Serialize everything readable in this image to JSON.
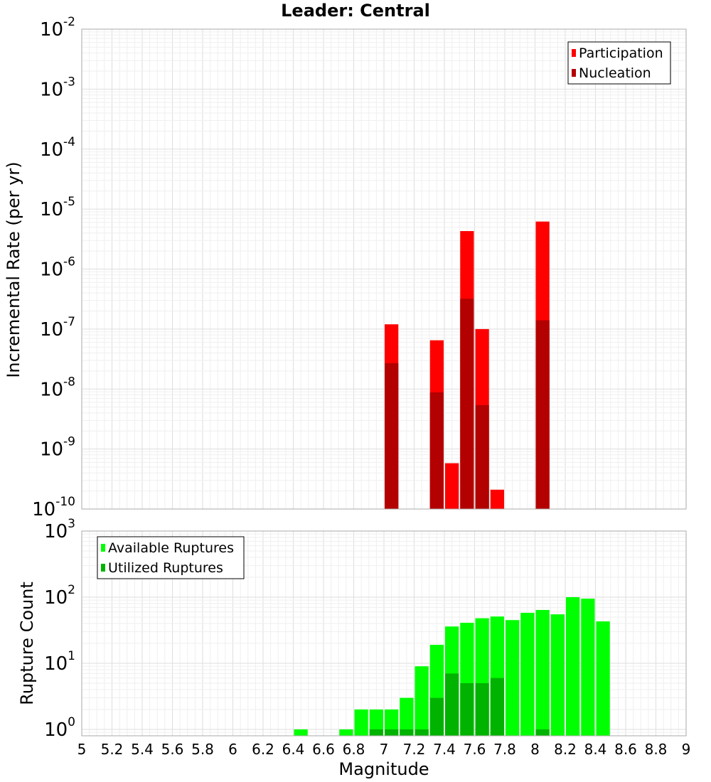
{
  "title": "Leader: Central",
  "chart_data": [
    {
      "type": "bar",
      "ylabel": "Incremental Rate (per yr)",
      "xlabel": "",
      "yscale": "log",
      "ylim": [
        1e-10,
        0.01
      ],
      "xlim": [
        5,
        9
      ],
      "grid": true,
      "legend_position": "top-right",
      "bin_width": 0.1,
      "series": [
        {
          "name": "Participation",
          "color": "#ff0000",
          "x": [
            7.05,
            7.35,
            7.45,
            7.55,
            7.65,
            7.75,
            8.05
          ],
          "values": [
            1.2e-07,
            6.5e-08,
            5.8e-10,
            4.3e-06,
            1e-07,
            2.1e-10,
            6.2e-06
          ]
        },
        {
          "name": "Nucleation",
          "color": "#b30000",
          "x": [
            7.05,
            7.35,
            7.55,
            7.65,
            8.05
          ],
          "values": [
            2.7e-08,
            8.8e-09,
            3.2e-07,
            5.4e-09,
            1.4e-07
          ]
        }
      ]
    },
    {
      "type": "bar",
      "ylabel": "Rupture Count",
      "xlabel": "Magnitude",
      "yscale": "log",
      "ylim": [
        0.8,
        1000
      ],
      "xlim": [
        5,
        9
      ],
      "grid": true,
      "legend_position": "top-left",
      "bin_width": 0.1,
      "xticks": [
        "5",
        "5.2",
        "5.4",
        "5.6",
        "5.8",
        "6",
        "6.2",
        "6.4",
        "6.6",
        "6.8",
        "7",
        "7.2",
        "7.4",
        "7.6",
        "7.8",
        "8",
        "8.2",
        "8.4",
        "8.6",
        "8.8",
        "9"
      ],
      "series": [
        {
          "name": "Available Ruptures",
          "color": "#00ff00",
          "x": [
            6.45,
            6.75,
            6.85,
            6.95,
            7.05,
            7.15,
            7.25,
            7.35,
            7.45,
            7.55,
            7.65,
            7.75,
            7.85,
            7.95,
            8.05,
            8.15,
            8.25,
            8.35,
            8.45
          ],
          "values": [
            1,
            1,
            2,
            2,
            2,
            3,
            9,
            19,
            36,
            41,
            48,
            51,
            45,
            58,
            64,
            55,
            100,
            95,
            43
          ]
        },
        {
          "name": "Utilized Ruptures",
          "color": "#00b300",
          "x": [
            6.95,
            7.05,
            7.15,
            7.25,
            7.35,
            7.45,
            7.55,
            7.65,
            7.75,
            8.05
          ],
          "values": [
            1,
            1,
            1,
            1,
            3,
            7,
            5,
            5,
            6,
            1
          ]
        }
      ]
    }
  ],
  "top_yticks": [
    {
      "base": "10",
      "exp": "-2",
      "value": 0.01
    },
    {
      "base": "10",
      "exp": "-3",
      "value": 0.001
    },
    {
      "base": "10",
      "exp": "-4",
      "value": 0.0001
    },
    {
      "base": "10",
      "exp": "-5",
      "value": 1e-05
    },
    {
      "base": "10",
      "exp": "-6",
      "value": 1e-06
    },
    {
      "base": "10",
      "exp": "-7",
      "value": 1e-07
    },
    {
      "base": "10",
      "exp": "-8",
      "value": 1e-08
    },
    {
      "base": "10",
      "exp": "-9",
      "value": 1e-09
    },
    {
      "base": "10",
      "exp": "-10",
      "value": 1e-10
    }
  ],
  "bottom_yticks": [
    {
      "base": "10",
      "exp": "3",
      "value": 1000
    },
    {
      "base": "10",
      "exp": "2",
      "value": 100
    },
    {
      "base": "10",
      "exp": "1",
      "value": 10
    },
    {
      "base": "10",
      "exp": "0",
      "value": 1
    }
  ]
}
